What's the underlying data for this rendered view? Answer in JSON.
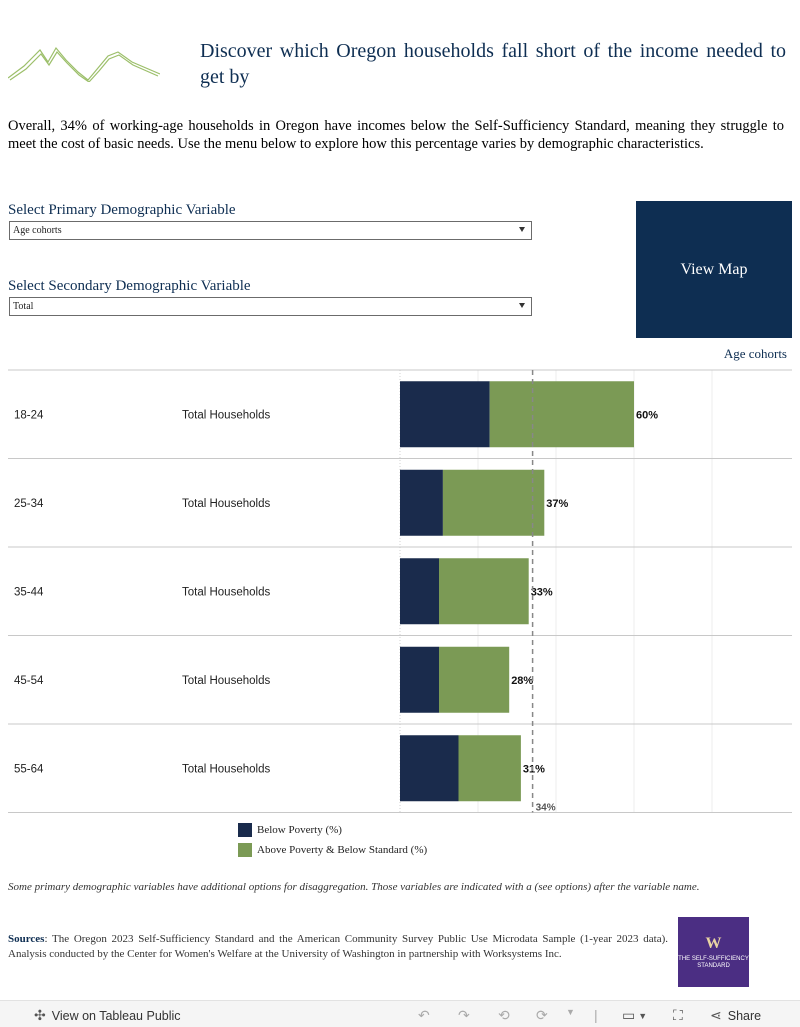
{
  "header": {
    "title": "Discover which Oregon households fall short of the income needed to get by",
    "intro": "Overall, 34% of working-age households in Oregon have incomes below the Self-Sufficiency Standard, meaning they struggle to meet the cost of basic needs. Use the menu below to explore how this percentage varies by demographic characteristics."
  },
  "filters": {
    "primary_label": "Select Primary Demographic Variable",
    "primary_value": "Age cohorts",
    "secondary_label": "Select Secondary Demographic Variable",
    "secondary_value": "Total"
  },
  "view_map_label": "View Map",
  "chart_header": "Age cohorts",
  "chart_data": {
    "type": "bar",
    "orientation": "horizontal",
    "stacked": true,
    "categories": [
      "18-24",
      "25-34",
      "35-44",
      "45-54",
      "55-64"
    ],
    "subgroup": "Total Households",
    "series": [
      {
        "name": "Below Poverty (%)",
        "values": [
          23,
          11,
          10,
          10,
          15
        ]
      },
      {
        "name": "Above Poverty & Below Standard (%)",
        "values": [
          37,
          26,
          23,
          18,
          16
        ]
      }
    ],
    "totals": [
      60,
      37,
      33,
      28,
      31
    ],
    "total_labels": [
      "60%",
      "37%",
      "33%",
      "28%",
      "31%"
    ],
    "reference_line": {
      "value": 34,
      "label": "34%"
    },
    "xlim": [
      0,
      100
    ],
    "gridlines": [
      20,
      40,
      60,
      80
    ],
    "colors": {
      "below_poverty": "#1a2b4c",
      "above_poverty_below_standard": "#7b9a55"
    }
  },
  "legend": {
    "items": [
      {
        "label": "Below Poverty (%)"
      },
      {
        "label": "Above Poverty & Below Standard (%)"
      }
    ]
  },
  "note": "Some primary demographic variables have additional options for disaggregation. Those variables are indicated with a (see options) after the variable name.",
  "sources": {
    "label": "Sources",
    "text": ": The Oregon 2023 Self-Sufficiency Standard and the American Community Survey Public Use Microdata Sample (1-year 2023 data). Analysis conducted by the Center for Women's Welfare at the University of Washington in partnership with Worksystems Inc."
  },
  "org_logo": {
    "mark": "W",
    "text": "THE SELF-SUFFICIENCY STANDARD"
  },
  "toolbar": {
    "view_label": "View on Tableau Public",
    "share_label": "Share"
  }
}
